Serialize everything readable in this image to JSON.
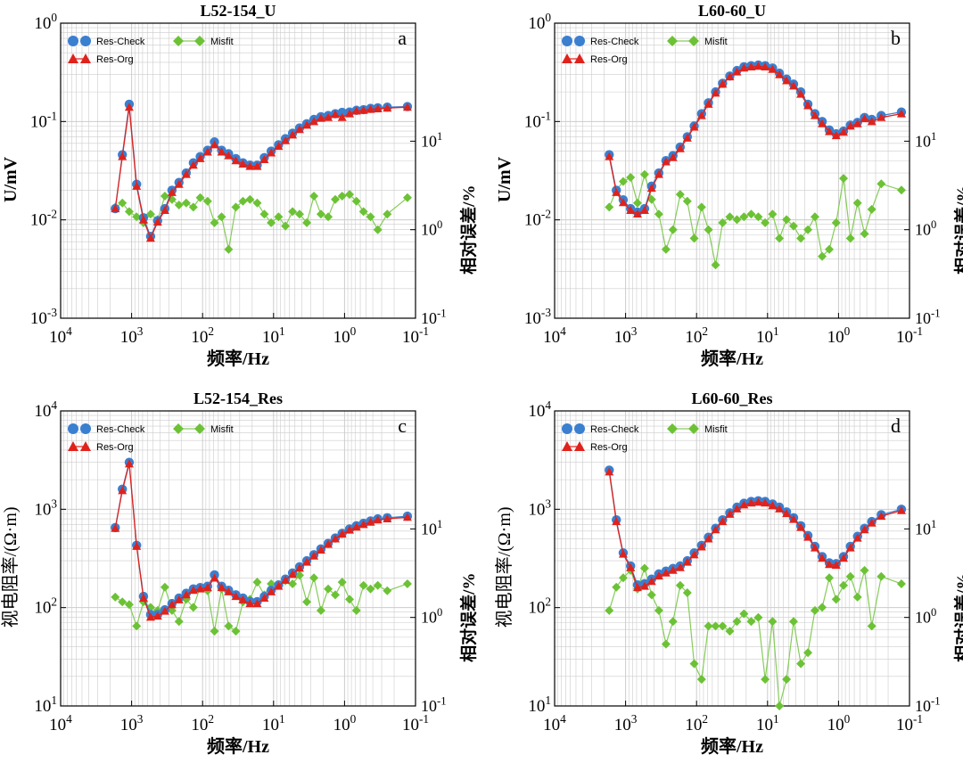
{
  "figure": {
    "legend": {
      "check": "Res-Check",
      "org": "Res-Org",
      "misfit": "Misfit"
    },
    "colors": {
      "check": "#3a7fd0",
      "org": "#e0221c",
      "misfit": "#6cc235",
      "misfit_line": "#86cc5a",
      "grid": "#cccccc"
    }
  },
  "chart_data": [
    {
      "type": "line",
      "panel": "a",
      "title": "L52-154_U",
      "xlabel": "频率/Hz",
      "ylabel": "U/mV",
      "y2label": "相对误差/%",
      "x_scale": "log",
      "x_reversed": true,
      "xlim": [
        10000,
        0.1
      ],
      "y_scale": "log",
      "ylim": [
        0.001,
        1
      ],
      "y2_scale": "log",
      "y2lim": [
        0.1,
        10
      ],
      "x_ticks": [
        {
          "base": "10",
          "exp": "4"
        },
        {
          "base": "10",
          "exp": "3"
        },
        {
          "base": "10",
          "exp": "2"
        },
        {
          "base": "10",
          "exp": "1"
        },
        {
          "base": "10",
          "exp": "0"
        },
        {
          "base": "10",
          "exp": "-1"
        }
      ],
      "y_ticks": [
        {
          "base": "10",
          "exp": "0"
        },
        {
          "base": "10",
          "exp": "-1"
        },
        {
          "base": "10",
          "exp": "-2"
        },
        {
          "base": "10",
          "exp": "-3"
        }
      ],
      "y2_ticks": [
        {
          "base": "10",
          "exp": "1"
        },
        {
          "base": "10",
          "exp": "0"
        },
        {
          "base": "10",
          "exp": "-1"
        }
      ],
      "x": [
        1700,
        1350,
        1080,
        850,
        680,
        540,
        430,
        340,
        270,
        215,
        170,
        135,
        108,
        85,
        68,
        54,
        43,
        34,
        27,
        21.5,
        17,
        13.5,
        10.8,
        8.5,
        6.8,
        5.4,
        4.3,
        3.4,
        2.7,
        2.15,
        1.7,
        1.35,
        1.08,
        0.85,
        0.68,
        0.54,
        0.43,
        0.34,
        0.25,
        0.13
      ],
      "series": [
        {
          "name": "Res-Check",
          "values": [
            0.013,
            0.046,
            0.15,
            0.023,
            0.0105,
            0.0068,
            0.0098,
            0.013,
            0.02,
            0.024,
            0.03,
            0.038,
            0.044,
            0.051,
            0.062,
            0.051,
            0.047,
            0.042,
            0.038,
            0.036,
            0.036,
            0.043,
            0.05,
            0.058,
            0.067,
            0.076,
            0.086,
            0.095,
            0.105,
            0.112,
            0.115,
            0.12,
            0.124,
            0.125,
            0.13,
            0.132,
            0.136,
            0.138,
            0.14,
            0.142
          ]
        },
        {
          "name": "Res-Org",
          "values": [
            0.013,
            0.044,
            0.14,
            0.022,
            0.01,
            0.0065,
            0.0095,
            0.0125,
            0.019,
            0.023,
            0.029,
            0.036,
            0.042,
            0.049,
            0.058,
            0.049,
            0.045,
            0.04,
            0.037,
            0.035,
            0.035,
            0.041,
            0.048,
            0.056,
            0.064,
            0.073,
            0.083,
            0.092,
            0.1,
            0.108,
            0.11,
            0.118,
            0.11,
            0.12,
            0.128,
            0.13,
            0.133,
            0.135,
            0.137,
            0.14
          ]
        },
        {
          "name": "Misfit",
          "axis": "right",
          "values": [
            1.8,
            2.0,
            1.6,
            1.4,
            1.2,
            1.5,
            1.3,
            2.4,
            2.2,
            1.9,
            2.0,
            1.8,
            2.3,
            2.1,
            1.2,
            1.4,
            0.6,
            1.8,
            2.1,
            2.2,
            2.0,
            1.5,
            1.2,
            1.4,
            1.1,
            1.6,
            1.5,
            1.2,
            2.4,
            1.5,
            1.4,
            2.2,
            2.4,
            2.5,
            2.1,
            1.6,
            1.4,
            1.0,
            1.5,
            2.3
          ]
        }
      ]
    },
    {
      "type": "line",
      "panel": "b",
      "title": "L60-60_U",
      "xlabel": "频率/Hz",
      "ylabel": "U/mV",
      "y2label": "相对误差/%",
      "x_scale": "log",
      "x_reversed": true,
      "xlim": [
        10000,
        0.1
      ],
      "y_scale": "log",
      "ylim": [
        0.001,
        1
      ],
      "y2_scale": "log",
      "y2lim": [
        0.1,
        10
      ],
      "x_ticks": [
        {
          "base": "10",
          "exp": "4"
        },
        {
          "base": "10",
          "exp": "3"
        },
        {
          "base": "10",
          "exp": "2"
        },
        {
          "base": "10",
          "exp": "1"
        },
        {
          "base": "10",
          "exp": "0"
        },
        {
          "base": "10",
          "exp": "-1"
        }
      ],
      "y_ticks": [
        {
          "base": "10",
          "exp": "0"
        },
        {
          "base": "10",
          "exp": "-1"
        },
        {
          "base": "10",
          "exp": "-2"
        },
        {
          "base": "10",
          "exp": "-3"
        }
      ],
      "y2_ticks": [
        {
          "base": "10",
          "exp": "1"
        },
        {
          "base": "10",
          "exp": "0"
        },
        {
          "base": "10",
          "exp": "-1"
        }
      ],
      "x": [
        1700,
        1350,
        1080,
        850,
        680,
        540,
        430,
        340,
        270,
        215,
        170,
        135,
        108,
        85,
        68,
        54,
        43,
        34,
        27,
        21.5,
        17,
        13.5,
        10.8,
        8.5,
        6.8,
        5.4,
        4.3,
        3.4,
        2.7,
        2.15,
        1.7,
        1.35,
        1.08,
        0.85,
        0.68,
        0.54,
        0.43,
        0.34,
        0.25,
        0.13
      ],
      "series": [
        {
          "name": "Res-Check",
          "values": [
            0.046,
            0.02,
            0.016,
            0.013,
            0.012,
            0.013,
            0.022,
            0.03,
            0.04,
            0.045,
            0.055,
            0.07,
            0.09,
            0.12,
            0.155,
            0.2,
            0.245,
            0.29,
            0.33,
            0.36,
            0.37,
            0.375,
            0.37,
            0.35,
            0.31,
            0.27,
            0.24,
            0.2,
            0.15,
            0.12,
            0.1,
            0.082,
            0.075,
            0.08,
            0.092,
            0.098,
            0.11,
            0.105,
            0.115,
            0.125
          ]
        },
        {
          "name": "Res-Org",
          "values": [
            0.044,
            0.019,
            0.015,
            0.0125,
            0.0115,
            0.0125,
            0.021,
            0.029,
            0.039,
            0.043,
            0.053,
            0.068,
            0.088,
            0.115,
            0.15,
            0.195,
            0.24,
            0.285,
            0.32,
            0.35,
            0.36,
            0.365,
            0.36,
            0.34,
            0.3,
            0.26,
            0.23,
            0.19,
            0.145,
            0.115,
            0.095,
            0.079,
            0.072,
            0.078,
            0.09,
            0.095,
            0.107,
            0.1,
            0.11,
            0.12
          ]
        },
        {
          "name": "Misfit",
          "axis": "right",
          "values": [
            1.8,
            2.8,
            3.5,
            3.9,
            2.0,
            4.2,
            2.2,
            1.5,
            0.6,
            1.0,
            2.5,
            2.1,
            0.8,
            1.8,
            1.0,
            0.4,
            1.2,
            1.4,
            1.3,
            1.4,
            1.5,
            1.4,
            1.2,
            1.5,
            0.8,
            1.3,
            1.1,
            0.8,
            1.0,
            1.4,
            0.5,
            0.6,
            1.2,
            3.8,
            0.8,
            2.0,
            0.9,
            1.7,
            3.3,
            2.8
          ]
        }
      ]
    },
    {
      "type": "line",
      "panel": "c",
      "title": "L52-154_Res",
      "xlabel": "频率/Hz",
      "ylabel": "视电阻率/(Ω·m)",
      "y2label": "相对误差/%",
      "x_scale": "log",
      "x_reversed": true,
      "xlim": [
        10000,
        0.1
      ],
      "y_scale": "log",
      "ylim": [
        10,
        10000
      ],
      "y2_scale": "log",
      "y2lim": [
        0.1,
        10
      ],
      "x_ticks": [
        {
          "base": "10",
          "exp": "4"
        },
        {
          "base": "10",
          "exp": "3"
        },
        {
          "base": "10",
          "exp": "2"
        },
        {
          "base": "10",
          "exp": "1"
        },
        {
          "base": "10",
          "exp": "0"
        },
        {
          "base": "10",
          "exp": "-1"
        }
      ],
      "y_ticks": [
        {
          "base": "10",
          "exp": "4"
        },
        {
          "base": "10",
          "exp": "3"
        },
        {
          "base": "10",
          "exp": "2"
        },
        {
          "base": "10",
          "exp": "1"
        }
      ],
      "y2_ticks": [
        {
          "base": "10",
          "exp": "1"
        },
        {
          "base": "10",
          "exp": "0"
        },
        {
          "base": "10",
          "exp": "-1"
        }
      ],
      "x": [
        1700,
        1350,
        1080,
        850,
        680,
        540,
        430,
        340,
        270,
        215,
        170,
        135,
        108,
        85,
        68,
        54,
        43,
        34,
        27,
        21.5,
        17,
        13.5,
        10.8,
        8.5,
        6.8,
        5.4,
        4.3,
        3.4,
        2.7,
        2.15,
        1.7,
        1.35,
        1.08,
        0.85,
        0.68,
        0.54,
        0.43,
        0.34,
        0.25,
        0.13
      ],
      "series": [
        {
          "name": "Res-Check",
          "values": [
            650,
            1600,
            3000,
            430,
            130,
            85,
            85,
            95,
            110,
            125,
            140,
            155,
            160,
            165,
            215,
            165,
            150,
            135,
            125,
            115,
            115,
            130,
            150,
            170,
            195,
            225,
            260,
            300,
            345,
            395,
            450,
            510,
            570,
            630,
            680,
            720,
            760,
            800,
            820,
            850
          ]
        },
        {
          "name": "Res-Org",
          "values": [
            640,
            1550,
            2900,
            420,
            125,
            80,
            82,
            92,
            107,
            120,
            135,
            150,
            155,
            160,
            200,
            160,
            145,
            130,
            120,
            110,
            110,
            125,
            145,
            165,
            190,
            218,
            252,
            290,
            335,
            385,
            440,
            500,
            560,
            615,
            660,
            700,
            740,
            780,
            800,
            830
          ]
        },
        {
          "name": "Misfit",
          "axis": "right",
          "values": [
            1.7,
            1.5,
            1.4,
            0.8,
            1.5,
            1.3,
            1.2,
            2.2,
            1.2,
            0.9,
            1.6,
            1.3,
            2.2,
            2.0,
            0.7,
            2.1,
            0.8,
            0.7,
            1.5,
            1.6,
            2.5,
            1.8,
            2.4,
            2.3,
            2.6,
            2.4,
            3.0,
            1.5,
            2.8,
            1.2,
            2.1,
            1.8,
            2.5,
            1.6,
            1.2,
            2.3,
            2.1,
            2.3,
            2.0,
            2.4
          ]
        }
      ]
    },
    {
      "type": "line",
      "panel": "d",
      "title": "L60-60_Res",
      "xlabel": "频率/Hz",
      "ylabel": "视电阻率/(Ω·m)",
      "y2label": "相对误差/%",
      "x_scale": "log",
      "x_reversed": true,
      "xlim": [
        10000,
        0.1
      ],
      "y_scale": "log",
      "ylim": [
        10,
        10000
      ],
      "y2_scale": "log",
      "y2lim": [
        0.1,
        10
      ],
      "x_ticks": [
        {
          "base": "10",
          "exp": "4"
        },
        {
          "base": "10",
          "exp": "3"
        },
        {
          "base": "10",
          "exp": "2"
        },
        {
          "base": "10",
          "exp": "1"
        },
        {
          "base": "10",
          "exp": "0"
        },
        {
          "base": "10",
          "exp": "-1"
        }
      ],
      "y_ticks": [
        {
          "base": "10",
          "exp": "4"
        },
        {
          "base": "10",
          "exp": "3"
        },
        {
          "base": "10",
          "exp": "2"
        },
        {
          "base": "10",
          "exp": "1"
        }
      ],
      "y2_ticks": [
        {
          "base": "10",
          "exp": "1"
        },
        {
          "base": "10",
          "exp": "0"
        },
        {
          "base": "10",
          "exp": "-1"
        }
      ],
      "x": [
        1700,
        1350,
        1080,
        850,
        680,
        540,
        430,
        340,
        270,
        215,
        170,
        135,
        108,
        85,
        68,
        54,
        43,
        34,
        27,
        21.5,
        17,
        13.5,
        10.8,
        8.5,
        6.8,
        5.4,
        4.3,
        3.4,
        2.7,
        2.15,
        1.7,
        1.35,
        1.08,
        0.85,
        0.68,
        0.54,
        0.43,
        0.34,
        0.25,
        0.13
      ],
      "series": [
        {
          "name": "Res-Check",
          "values": [
            2500,
            780,
            360,
            265,
            170,
            175,
            195,
            220,
            235,
            250,
            265,
            300,
            360,
            430,
            520,
            640,
            780,
            920,
            1050,
            1150,
            1200,
            1220,
            1200,
            1130,
            1050,
            940,
            820,
            680,
            540,
            420,
            330,
            285,
            280,
            330,
            420,
            530,
            640,
            750,
            880,
            1000
          ]
        },
        {
          "name": "Res-Org",
          "values": [
            2400,
            750,
            350,
            255,
            160,
            165,
            185,
            210,
            225,
            240,
            255,
            290,
            345,
            415,
            500,
            620,
            750,
            890,
            1010,
            1110,
            1160,
            1180,
            1160,
            1090,
            1010,
            905,
            790,
            655,
            520,
            405,
            318,
            275,
            270,
            318,
            405,
            510,
            620,
            725,
            850,
            970
          ]
        },
        {
          "name": "Misfit",
          "axis": "right",
          "values": [
            1.2,
            2.2,
            2.8,
            3.4,
            2.1,
            3.6,
            1.8,
            1.2,
            0.5,
            0.9,
            2.3,
            1.9,
            0.3,
            0.2,
            0.8,
            0.8,
            0.8,
            0.7,
            0.9,
            1.1,
            0.9,
            1.0,
            0.2,
            0.9,
            0.1,
            0.2,
            0.9,
            0.3,
            0.4,
            1.2,
            1.3,
            2.8,
            1.6,
            2.3,
            2.9,
            1.7,
            3.4,
            0.8,
            2.9,
            2.4
          ]
        }
      ]
    }
  ]
}
